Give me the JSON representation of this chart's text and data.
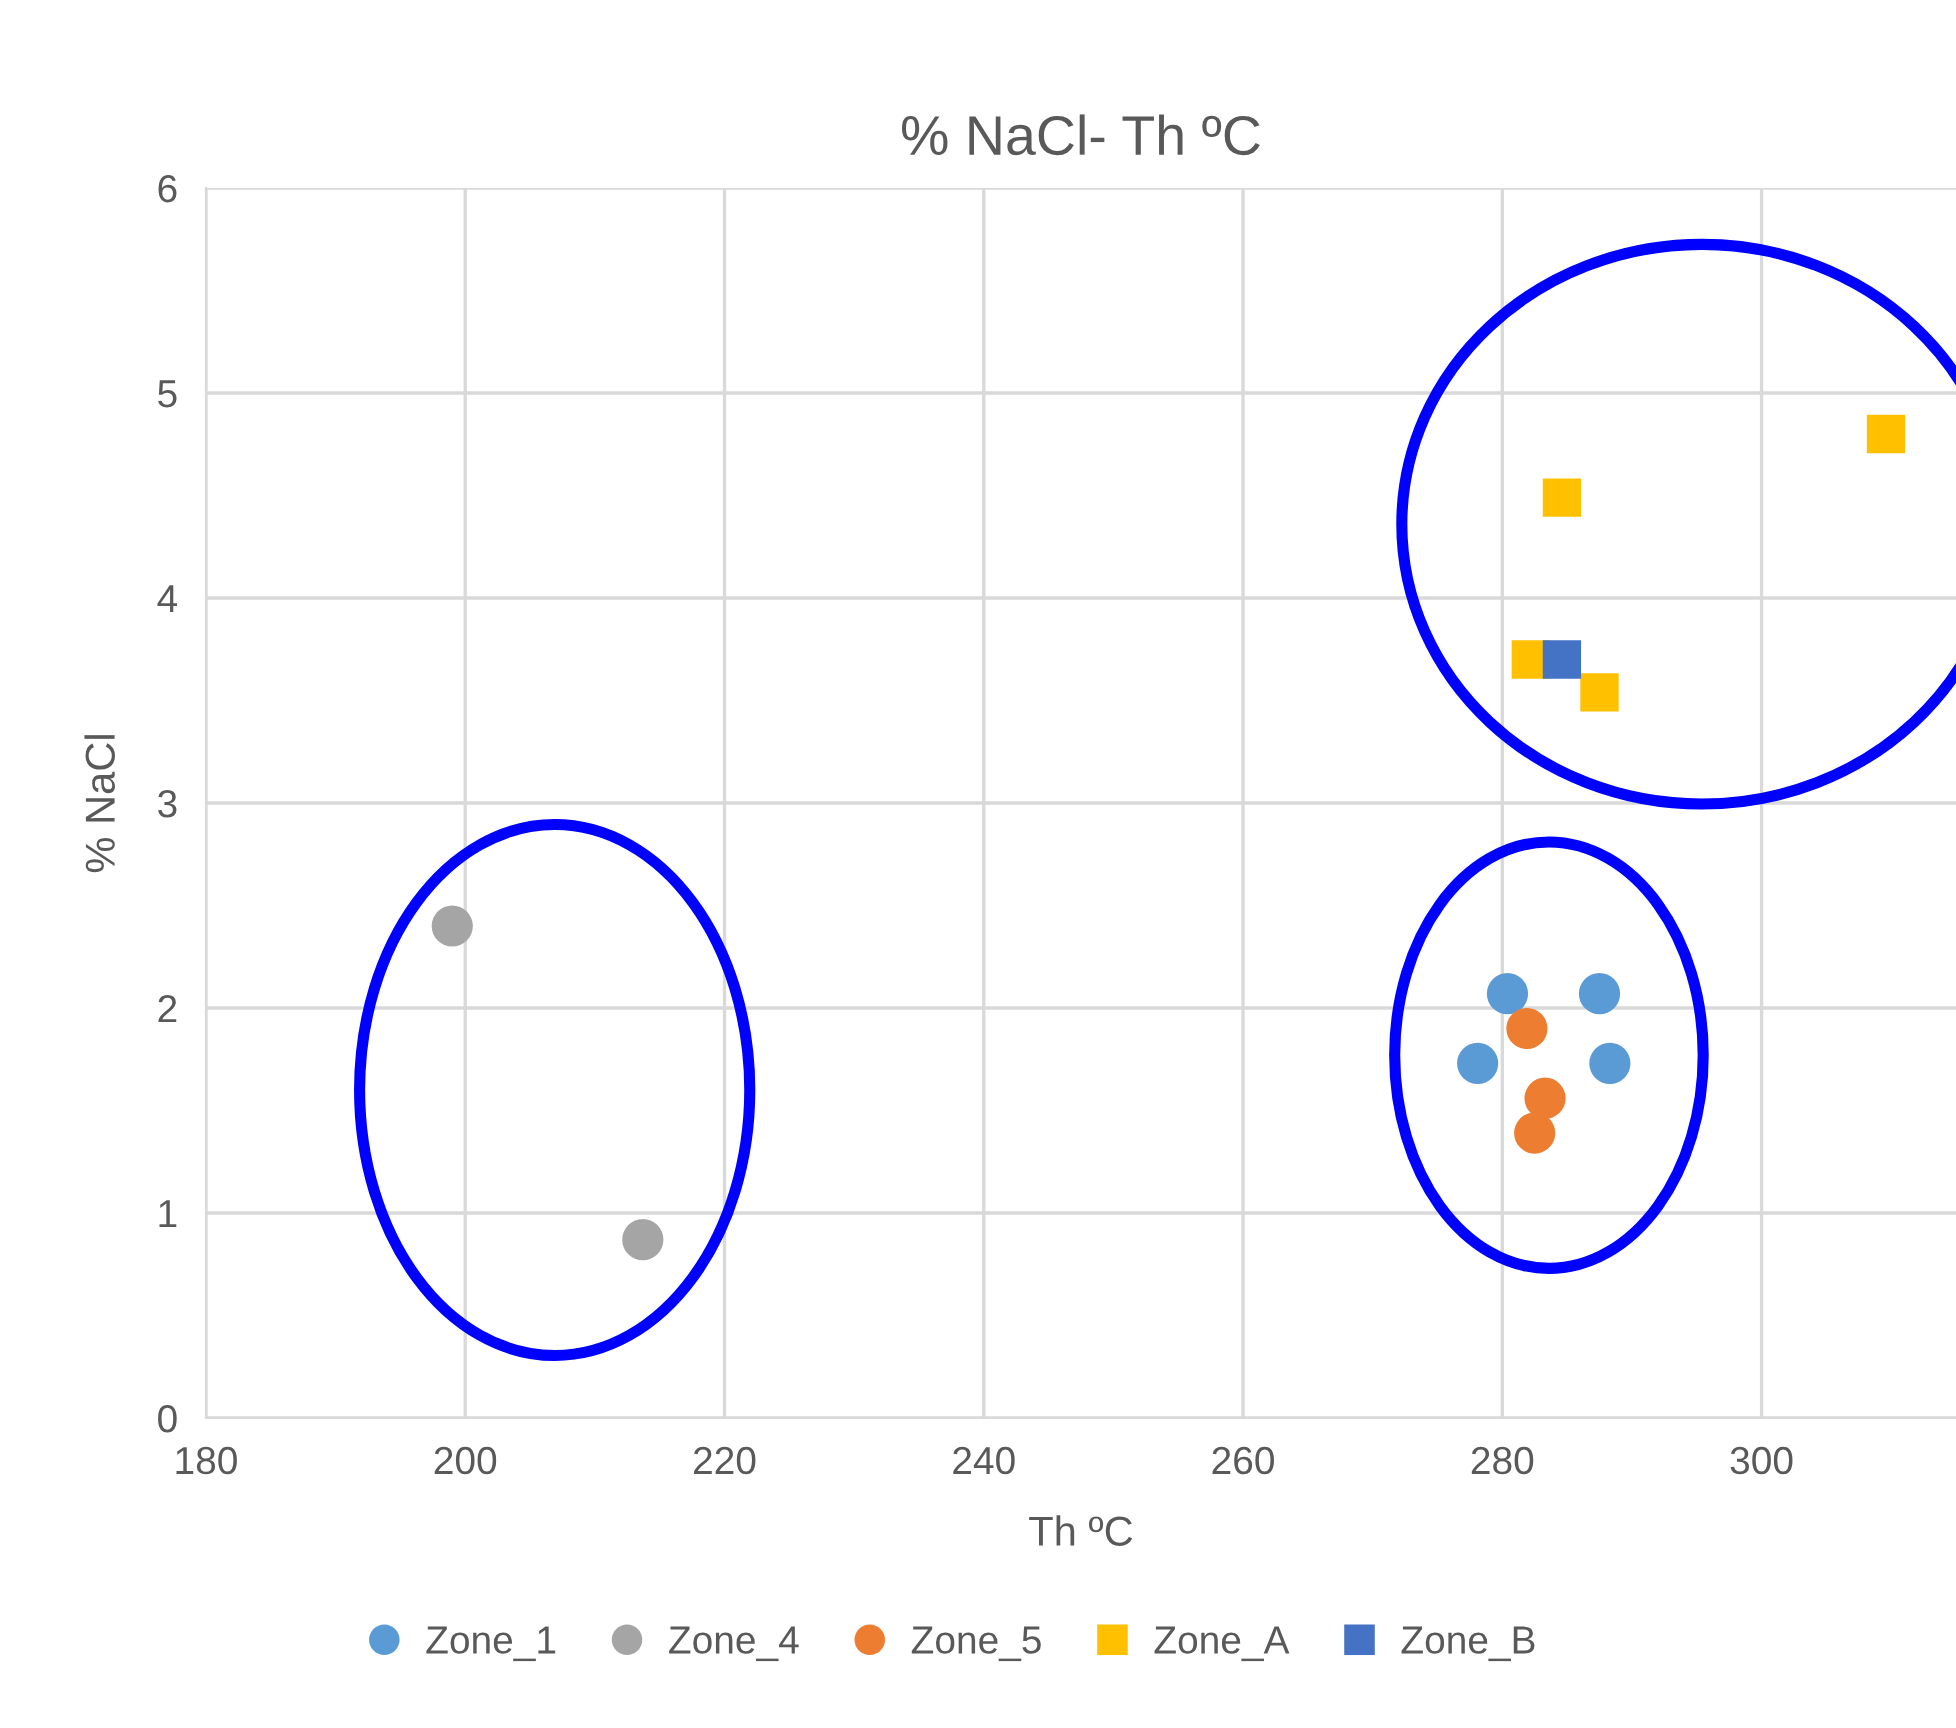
{
  "chart_data": {
    "type": "scatter",
    "title": "% NaCl- Th ºC",
    "xlabel": "Th ºC",
    "ylabel": "% NaCl",
    "xlim": [
      180,
      315
    ],
    "xticks": [
      180,
      200,
      220,
      240,
      260,
      280,
      300
    ],
    "ylim": [
      0,
      6
    ],
    "yticks": [
      0,
      1,
      2,
      3,
      4,
      5,
      6
    ],
    "grid": true,
    "legend": "bottom",
    "series": [
      {
        "name": "Zone_1",
        "color": "#5b9bd5",
        "marker": "circle",
        "x": [
          280.4,
          287.5,
          278.1,
          288.3
        ],
        "values": [
          2.07,
          2.07,
          1.73,
          1.73
        ]
      },
      {
        "name": "Zone_4",
        "color": "#a5a5a5",
        "marker": "circle",
        "x": [
          199.0,
          213.7
        ],
        "values": [
          2.4,
          0.87
        ]
      },
      {
        "name": "Zone_5",
        "color": "#ed7d31",
        "marker": "circle",
        "x": [
          281.9,
          283.3,
          282.5
        ],
        "values": [
          1.9,
          1.56,
          1.39
        ]
      },
      {
        "name": "Zone_A",
        "color": "#ffc000",
        "marker": "square",
        "x": [
          282.2,
          284.6,
          287.5,
          309.6
        ],
        "values": [
          3.7,
          4.49,
          3.54,
          4.8
        ]
      },
      {
        "name": "Zone_B",
        "color": "#4472c4",
        "marker": "square",
        "x": [
          284.6
        ],
        "values": [
          3.7
        ]
      }
    ]
  }
}
